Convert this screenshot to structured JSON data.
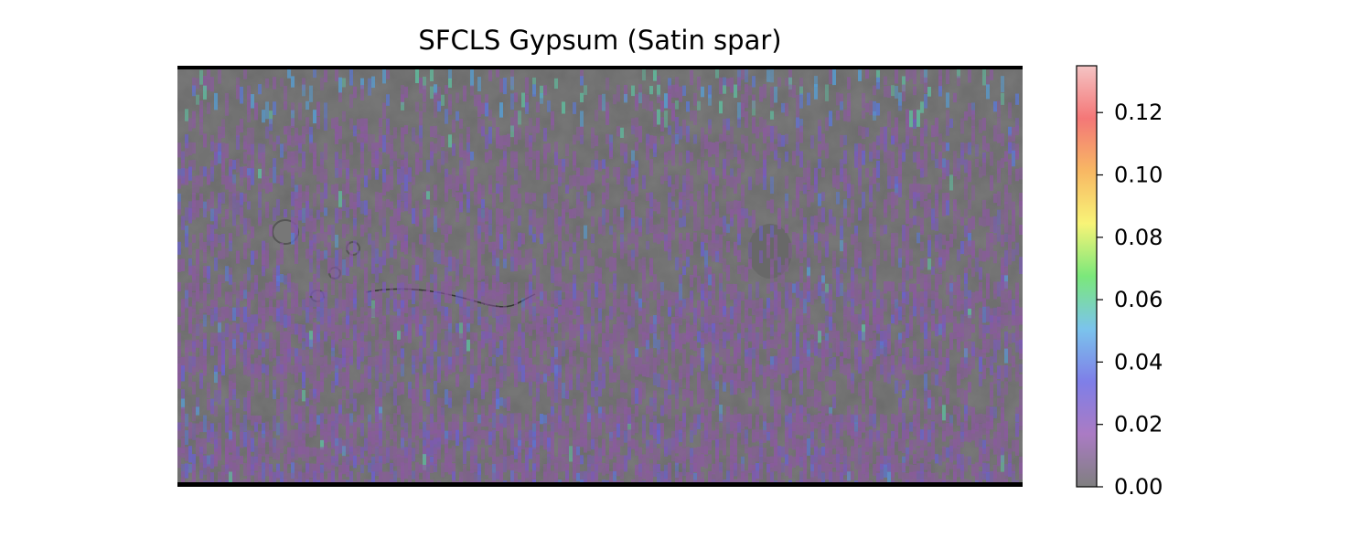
{
  "chart_data": {
    "type": "heatmap",
    "title": "SFCLS Gypsum (Satin spar)",
    "xlabel": "",
    "ylabel": "",
    "description_visual": "global equirectangular shaded-relief basemap with semi-transparent abundance overlay",
    "colorbar": {
      "min": 0.0,
      "max": 0.135,
      "ticks": [
        0.0,
        0.02,
        0.04,
        0.06,
        0.08,
        0.1,
        0.12
      ],
      "tick_labels": [
        "0.00",
        "0.02",
        "0.04",
        "0.06",
        "0.08",
        "0.10",
        "0.12"
      ],
      "colormap": [
        "#555555",
        "#8e4fb0",
        "#5454e0",
        "#4fb0e6",
        "#4fe04f",
        "#f5f04a",
        "#f5a030",
        "#f04a4a",
        "#f0b0b0"
      ]
    },
    "basemap_color": "#6a6a6a",
    "overlay_base_color": "#8a5a9e",
    "grid": false,
    "legend": "none"
  }
}
